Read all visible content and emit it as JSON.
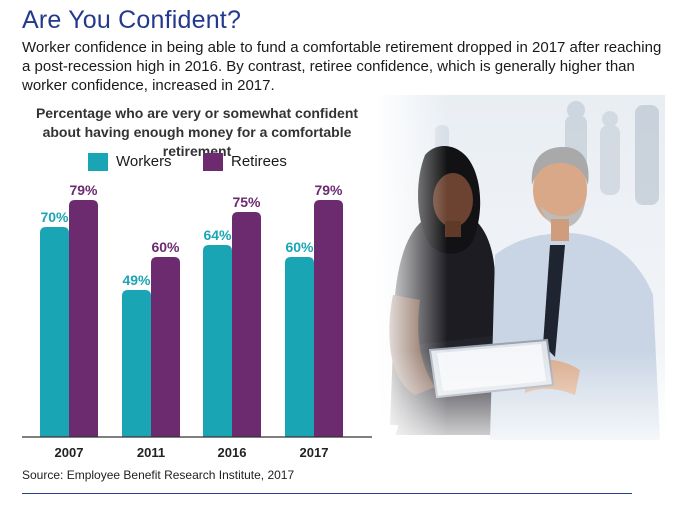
{
  "header": {
    "title": "Are You Confident?",
    "intro": "Worker confidence in being able to fund a comfortable retirement dropped in 2017 after reaching a post-recession high in 2016. By contrast, retiree confidence, which is generally higher than worker confidence, increased in 2017."
  },
  "chart_data": {
    "type": "bar",
    "title": "Percentage who are very or somewhat confident about having enough money for a comfortable retirement",
    "categories": [
      "2007",
      "2011",
      "2016",
      "2017"
    ],
    "series": [
      {
        "name": "Workers",
        "values": [
          70,
          49,
          64,
          60
        ],
        "labels": [
          "70%",
          "49%",
          "64%",
          "60%"
        ],
        "color": "#1aa5b5"
      },
      {
        "name": "Retirees",
        "values": [
          79,
          60,
          75,
          79
        ],
        "labels": [
          "79%",
          "60%",
          "75%",
          "79%"
        ],
        "color": "#6c2a6f"
      }
    ],
    "ylim": [
      0,
      100
    ],
    "grid": false,
    "legend": "top"
  },
  "footer": {
    "source": "Source: Employee Benefit Research Institute, 2017"
  },
  "colors": {
    "title": "#233a8c",
    "workers": "#1aa5b5",
    "retirees": "#6c2a6f",
    "axis": "#333333",
    "rule": "#2a3f8f"
  },
  "photo": {
    "icon": "business-people-photo"
  }
}
